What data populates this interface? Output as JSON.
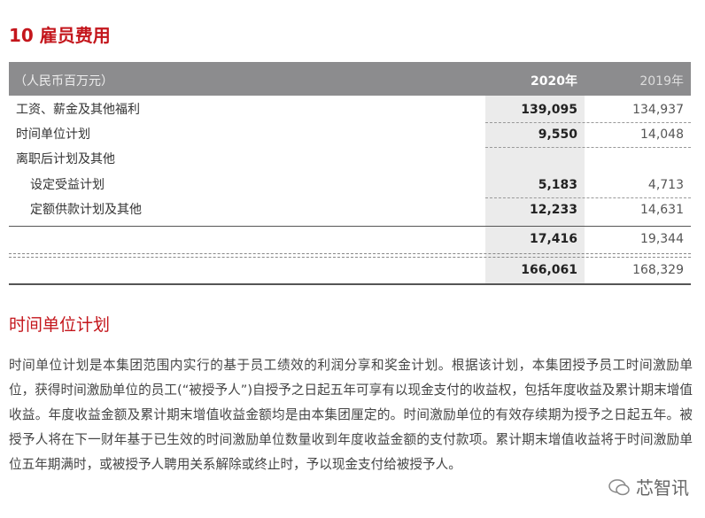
{
  "title": "10  雇员费用",
  "table": {
    "unit": "（人民币百万元）",
    "col_2020": "2020年",
    "col_2019": "2019年",
    "rows": [
      {
        "label": "工资、薪金及其他福利",
        "v2020": "139,095",
        "v2019": "134,937"
      },
      {
        "label": "时间单位计划",
        "v2020": "9,550",
        "v2019": "14,048"
      },
      {
        "label": "离职后计划及其他",
        "v2020": "",
        "v2019": ""
      },
      {
        "label": "设定受益计划",
        "v2020": "5,183",
        "v2019": "4,713"
      },
      {
        "label": "定额供款计划及其他",
        "v2020": "12,233",
        "v2019": "14,631"
      },
      {
        "label": "",
        "v2020": "17,416",
        "v2019": "19,344"
      },
      {
        "label": "",
        "v2020": "166,061",
        "v2019": "168,329"
      }
    ]
  },
  "subtitle": "时间单位计划",
  "paragraph": "时间单位计划是本集团范围内实行的基于员工绩效的利润分享和奖金计划。根据该计划，本集团授予员工时间激励单位，获得时间激励单位的员工(“被授予人”)自授予之日起五年可享有以现金支付的收益权，包括年度收益及累计期末增值收益。年度收益金额及累计期末增值收益金额均是由本集团厘定的。时间激励单位的有效存续期为授予之日起五年。被授予人将在下一财年基于已生效的时间激励单位数量收到年度收益金额的支付款项。累计期末增值收益将于时间激励单位五年期满时，或被授予人聘用关系解除或终止时，予以现金支付给被授予人。",
  "watermark": "芯智讯"
}
